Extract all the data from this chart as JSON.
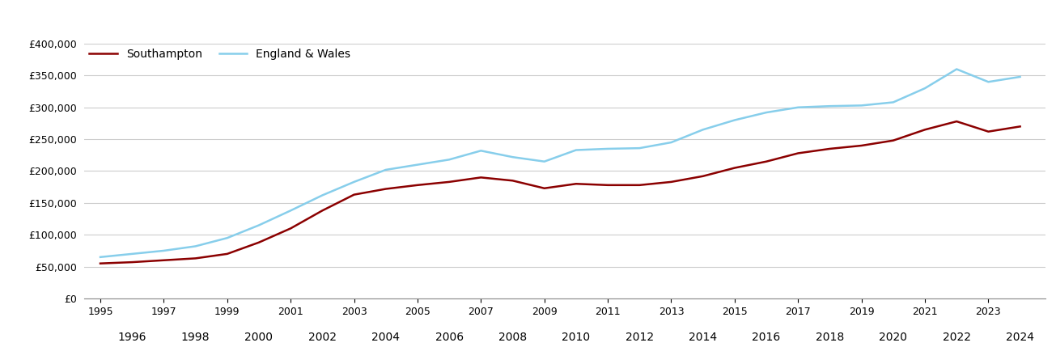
{
  "southampton_years": [
    1995,
    1996,
    1997,
    1998,
    1999,
    2000,
    2001,
    2002,
    2003,
    2004,
    2005,
    2006,
    2007,
    2008,
    2009,
    2010,
    2011,
    2012,
    2013,
    2014,
    2015,
    2016,
    2017,
    2018,
    2019,
    2020,
    2021,
    2022,
    2023,
    2024
  ],
  "southampton_values": [
    55000,
    57000,
    60000,
    63000,
    70000,
    88000,
    110000,
    138000,
    163000,
    172000,
    178000,
    183000,
    190000,
    185000,
    173000,
    180000,
    178000,
    178000,
    183000,
    192000,
    205000,
    215000,
    228000,
    235000,
    240000,
    248000,
    265000,
    278000,
    262000,
    270000
  ],
  "england_years": [
    1995,
    1996,
    1997,
    1998,
    1999,
    2000,
    2001,
    2002,
    2003,
    2004,
    2005,
    2006,
    2007,
    2008,
    2009,
    2010,
    2011,
    2012,
    2013,
    2014,
    2015,
    2016,
    2017,
    2018,
    2019,
    2020,
    2021,
    2022,
    2023,
    2024
  ],
  "england_values": [
    65000,
    70000,
    75000,
    82000,
    95000,
    115000,
    138000,
    162000,
    183000,
    202000,
    210000,
    218000,
    232000,
    222000,
    215000,
    233000,
    235000,
    236000,
    245000,
    265000,
    280000,
    292000,
    300000,
    302000,
    303000,
    308000,
    330000,
    360000,
    340000,
    348000
  ],
  "southampton_color": "#8b0000",
  "england_color": "#87ceeb",
  "ylim": [
    0,
    400000
  ],
  "yticks": [
    0,
    50000,
    100000,
    150000,
    200000,
    250000,
    300000,
    350000,
    400000
  ],
  "odd_xticks": [
    1995,
    1997,
    1999,
    2001,
    2003,
    2005,
    2007,
    2009,
    2011,
    2013,
    2015,
    2017,
    2019,
    2021,
    2023
  ],
  "even_xticks": [
    1996,
    1998,
    2000,
    2002,
    2004,
    2006,
    2008,
    2010,
    2012,
    2014,
    2016,
    2018,
    2020,
    2022,
    2024
  ],
  "legend_labels": [
    "Southampton",
    "England & Wales"
  ],
  "background_color": "#ffffff",
  "grid_color": "#cccccc",
  "line_width": 1.8,
  "xlim": [
    1994.5,
    2024.8
  ]
}
